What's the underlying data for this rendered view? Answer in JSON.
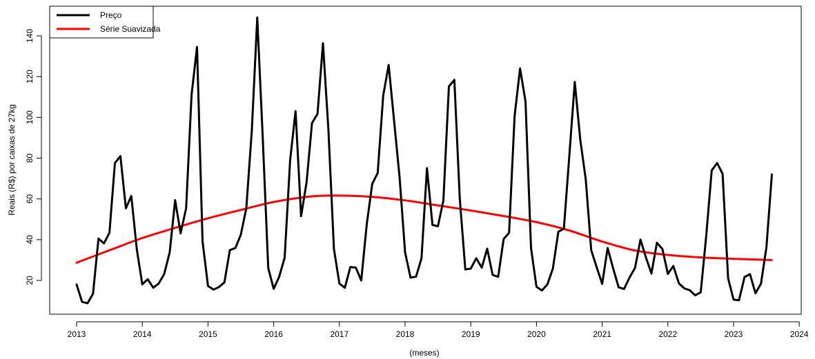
{
  "chart_data": {
    "type": "line",
    "xlabel": "(meses)",
    "ylabel": "Reais (R$) por caixas de 27kg",
    "xlim": [
      2012.6,
      2024.0
    ],
    "ylim": [
      5,
      150
    ],
    "x_ticks": [
      2013,
      2014,
      2015,
      2016,
      2017,
      2018,
      2019,
      2020,
      2021,
      2022,
      2023,
      2024
    ],
    "x_tick_labels": [
      "2013",
      "2014",
      "2015",
      "2016",
      "2017",
      "2018",
      "2019",
      "2020",
      "2021",
      "2022",
      "2023",
      "2024"
    ],
    "y_ticks": [
      20,
      40,
      60,
      80,
      100,
      120,
      140
    ],
    "y_tick_labels": [
      "20",
      "40",
      "60",
      "80",
      "100",
      "120",
      "140"
    ],
    "grid": false,
    "legend_position": "top-left",
    "series": [
      {
        "name": "Preço",
        "color": "#000000",
        "x_start": 2013,
        "x_step_months": 1,
        "values": [
          18,
          9.5,
          8.8,
          13.5,
          40.5,
          38.2,
          43.4,
          77.6,
          81,
          55.4,
          61.4,
          35.1,
          18.1,
          20.6,
          16.4,
          18.5,
          23.1,
          33.8,
          59.4,
          43.1,
          55.4,
          111.1,
          134.5,
          39.2,
          17.3,
          15.5,
          16.8,
          19.1,
          34.9,
          35.9,
          42.5,
          55.4,
          93.5,
          149,
          90.3,
          26.1,
          15.9,
          21.8,
          31.2,
          78.9,
          103.1,
          51.5,
          68,
          97.2,
          101.7,
          136.4,
          93.9,
          35.4,
          18.5,
          16.4,
          26.6,
          26.3,
          20,
          47.7,
          67.4,
          72.7,
          110.7,
          125.7,
          98.2,
          70.3,
          33.8,
          21.4,
          21.9,
          30.9,
          75.1,
          47.2,
          46.6,
          59.2,
          115.2,
          118.4,
          59.8,
          25.4,
          25.8,
          30.9,
          26.3,
          35.6,
          22.7,
          21.8,
          40.3,
          43.4,
          100.6,
          124,
          107.8,
          35.9,
          16.9,
          15.1,
          18.1,
          25.9,
          43.9,
          45.4,
          81.2,
          117.4,
          88.9,
          69.6,
          34.9,
          26.4,
          18.3,
          35.9,
          25.9,
          16.7,
          15.8,
          21.5,
          26.2,
          40,
          31.2,
          23.4,
          38.5,
          35.4,
          23.2,
          27.1,
          18.6,
          16.1,
          15.2,
          12.7,
          14.2,
          41.6,
          74,
          77.6,
          72.3,
          21,
          10.6,
          10.3,
          21.7,
          23.1,
          13.7,
          18.4,
          36.2,
          72
        ]
      },
      {
        "name": "Série Suavizada",
        "color": "#ff0000",
        "x": [
          2013,
          2013.5,
          2014,
          2014.5,
          2015,
          2015.5,
          2016,
          2016.5,
          2016.9,
          2017.5,
          2018,
          2018.5,
          2019,
          2019.5,
          2020,
          2020.5,
          2021,
          2021.5,
          2022,
          2022.5,
          2023,
          2023.58
        ],
        "values": [
          28.7,
          34.8,
          40.8,
          45.8,
          50.5,
          54.6,
          58.5,
          61,
          61.7,
          61,
          59.3,
          56.8,
          54.3,
          51.6,
          48.6,
          44.5,
          39.1,
          34.7,
          32.5,
          31.3,
          30.6,
          30
        ]
      }
    ]
  }
}
